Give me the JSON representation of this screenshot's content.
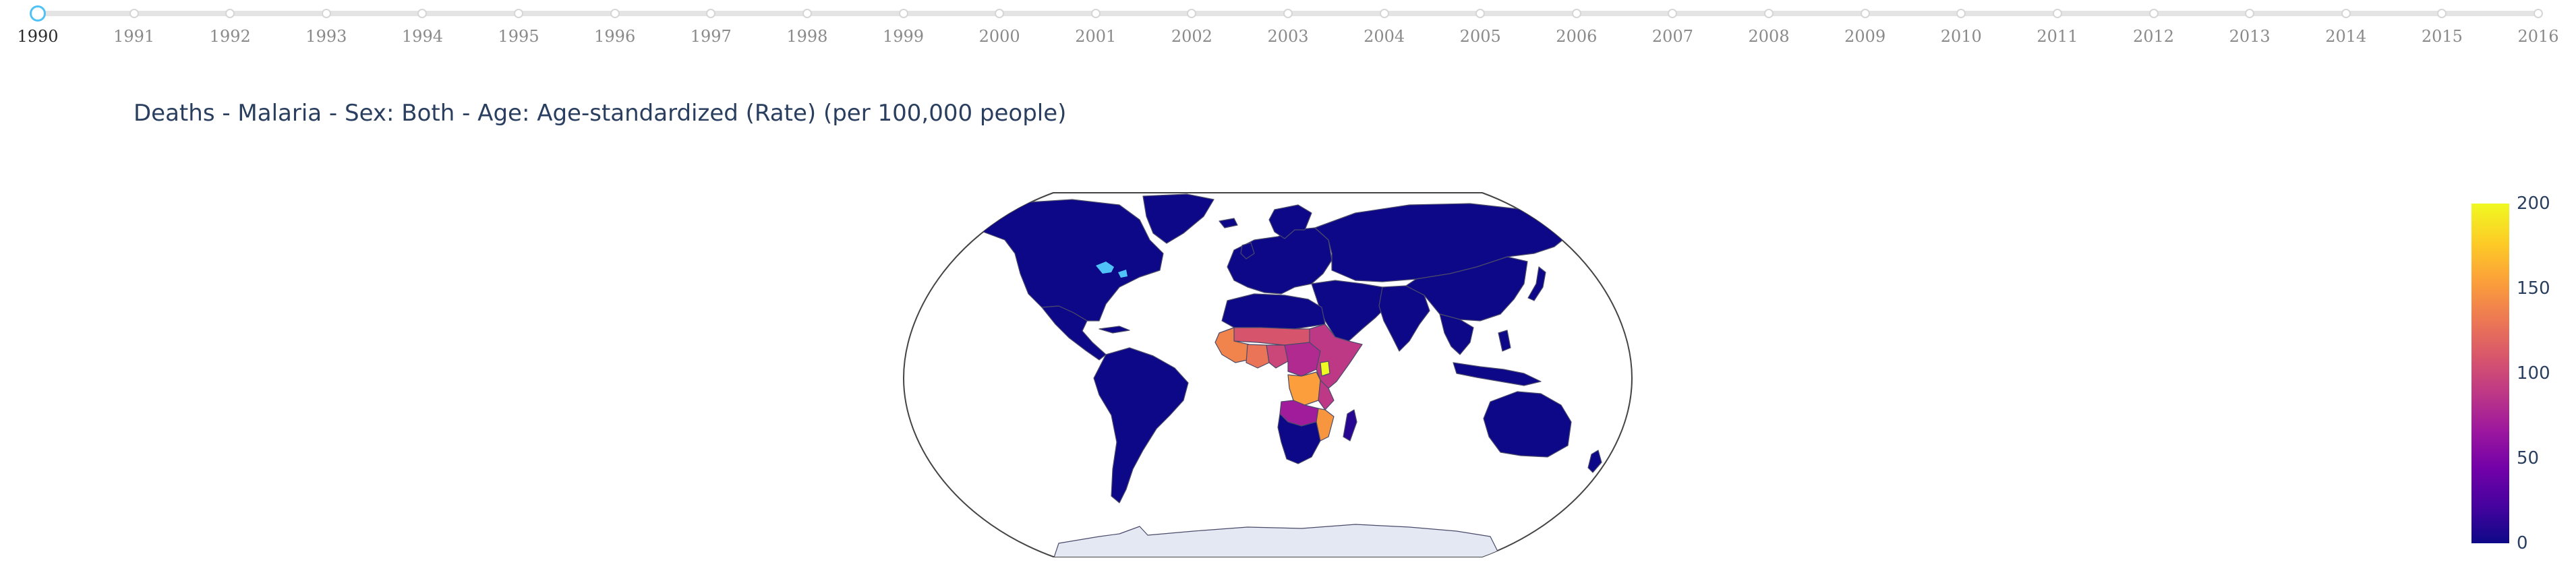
{
  "slider": {
    "years": [
      "1990",
      "1991",
      "1992",
      "1993",
      "1994",
      "1995",
      "1996",
      "1997",
      "1998",
      "1999",
      "2000",
      "2001",
      "2002",
      "2003",
      "2004",
      "2005",
      "2006",
      "2007",
      "2008",
      "2009",
      "2010",
      "2011",
      "2012",
      "2013",
      "2014",
      "2015",
      "2016"
    ],
    "active_year": "1990"
  },
  "title": "Deaths - Malaria - Sex: Both - Age: Age-standardized (Rate) (per 100,000 people)",
  "map": {
    "projection": "robinson",
    "colorscale": "plasma",
    "ocean_color": "#ffffff",
    "antarctica_color": "#e3e8f3",
    "border_color": "#4a4a6a",
    "regions": [
      {
        "name": "North America",
        "value": 0
      },
      {
        "name": "South America",
        "value": 0
      },
      {
        "name": "Europe",
        "value": 0
      },
      {
        "name": "Russia and Central Asia",
        "value": 0
      },
      {
        "name": "Middle East",
        "value": 0
      },
      {
        "name": "India",
        "value": 0
      },
      {
        "name": "China and East Asia",
        "value": 0
      },
      {
        "name": "Southeast Asia",
        "value": 0
      },
      {
        "name": "Australia",
        "value": 0
      },
      {
        "name": "North Africa",
        "value": 0
      },
      {
        "name": "Southern Africa",
        "value": 0
      },
      {
        "name": "Madagascar",
        "value": 10
      },
      {
        "name": "West Africa",
        "value": 140
      },
      {
        "name": "Guinea Coast",
        "value": 130
      },
      {
        "name": "Sahel",
        "value": 110
      },
      {
        "name": "Nigeria",
        "value": 100
      },
      {
        "name": "Central Africa",
        "value": 80
      },
      {
        "name": "DR Congo",
        "value": 155
      },
      {
        "name": "East Africa",
        "value": 90
      },
      {
        "name": "Uganda",
        "value": 200
      },
      {
        "name": "Mozambique",
        "value": 150
      },
      {
        "name": "Zambia",
        "value": 70
      }
    ]
  },
  "colorbar": {
    "min": 0,
    "max": 200,
    "ticks": [
      "200",
      "150",
      "100",
      "50",
      "0"
    ]
  }
}
